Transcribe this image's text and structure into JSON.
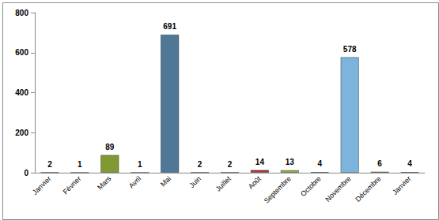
{
  "chart_data": {
    "type": "bar",
    "categories": [
      "Janvier",
      "Février",
      "Mars",
      "Avril",
      "Mai",
      "Juin",
      "Juillet",
      "Août",
      "Septembre",
      "Octobre",
      "Novembre",
      "Décembre",
      "Janvier"
    ],
    "values": [
      2,
      1,
      89,
      1,
      691,
      2,
      2,
      14,
      13,
      4,
      578,
      6,
      4
    ],
    "colors": [
      "#2b3f6b",
      "#8a2a2a",
      "#7f9a32",
      "#5a3f7e",
      "#4f7896",
      "#c0722a",
      "#2f4f7f",
      "#a83a38",
      "#8fab40",
      "#5b4a8c",
      "#7db4dc",
      "#c97b2e",
      "#8a9cc8"
    ],
    "ylim": [
      0,
      800
    ],
    "yticks": [
      0,
      200,
      400,
      600,
      800
    ],
    "grid": false,
    "data_labels": true
  }
}
